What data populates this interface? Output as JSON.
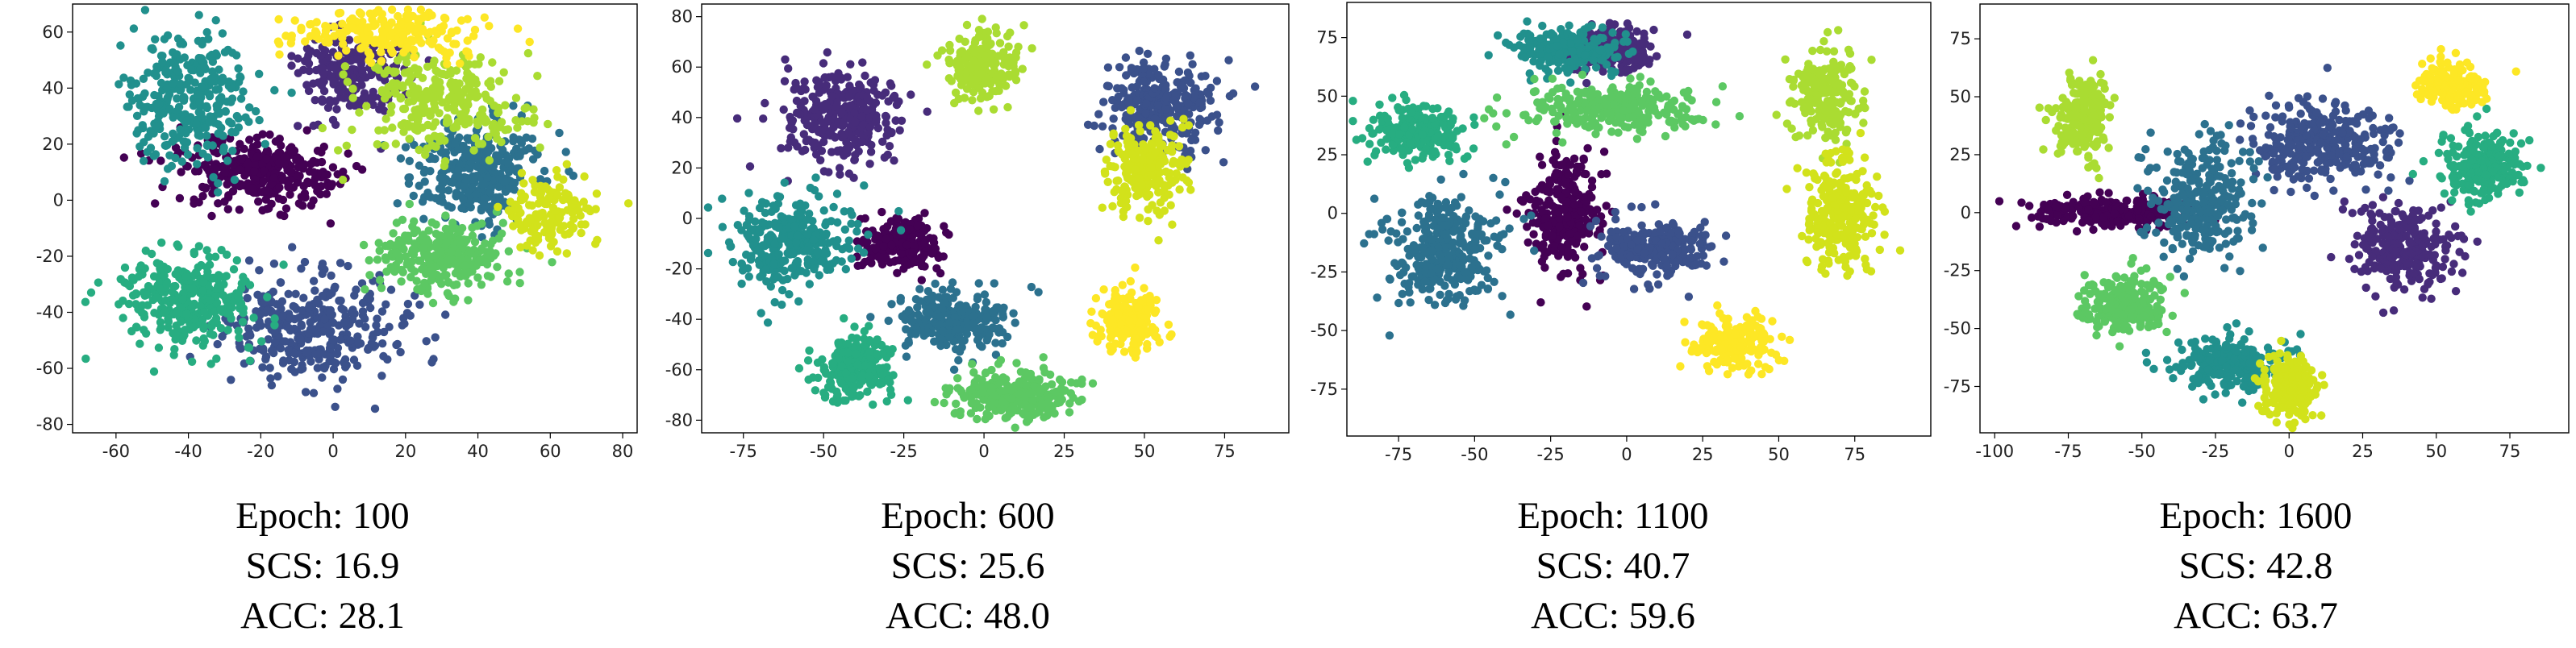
{
  "colors": {
    "palette": [
      "#440154",
      "#472c7a",
      "#3b518b",
      "#2c718e",
      "#21908d",
      "#27ad81",
      "#5cc863",
      "#aadc32",
      "#d2e21b",
      "#fde725"
    ],
    "axis": "#000000"
  },
  "chart_data": [
    {
      "type": "scatter",
      "caption": [
        "Epoch: 100",
        "SCS: 16.9",
        "ACC: 28.1"
      ],
      "xlim": [
        -72,
        84
      ],
      "ylim": [
        -83,
        70
      ],
      "xticks": [
        -60,
        -40,
        -20,
        0,
        20,
        40,
        60,
        80
      ],
      "yticks": [
        -80,
        -60,
        -40,
        -20,
        0,
        20,
        40,
        60
      ],
      "series": [
        {
          "color": "#440154",
          "center": [
            -20,
            10
          ],
          "spread": [
            18,
            10
          ],
          "n": 340
        },
        {
          "color": "#472c7a",
          "center": [
            5,
            45
          ],
          "spread": [
            12,
            12
          ],
          "n": 220
        },
        {
          "color": "#3b518b",
          "center": [
            -5,
            -45
          ],
          "spread": [
            20,
            15
          ],
          "n": 340
        },
        {
          "color": "#2c718e",
          "center": [
            40,
            10
          ],
          "spread": [
            15,
            15
          ],
          "n": 320
        },
        {
          "color": "#21908d",
          "center": [
            -40,
            35
          ],
          "spread": [
            15,
            20
          ],
          "n": 320
        },
        {
          "color": "#27ad81",
          "center": [
            -40,
            -35
          ],
          "spread": [
            15,
            15
          ],
          "n": 320
        },
        {
          "color": "#5cc863",
          "center": [
            30,
            -20
          ],
          "spread": [
            15,
            10
          ],
          "n": 280
        },
        {
          "color": "#aadc32",
          "center": [
            30,
            35
          ],
          "spread": [
            20,
            15
          ],
          "n": 280
        },
        {
          "color": "#d2e21b",
          "center": [
            60,
            -5
          ],
          "spread": [
            10,
            10
          ],
          "n": 160
        },
        {
          "color": "#fde725",
          "center": [
            15,
            60
          ],
          "spread": [
            20,
            7
          ],
          "n": 220
        }
      ]
    },
    {
      "type": "scatter",
      "caption": [
        "Epoch: 600",
        "SCS: 25.6",
        "ACC: 48.0"
      ],
      "xlim": [
        -88,
        95
      ],
      "ylim": [
        -85,
        85
      ],
      "xticks": [
        -75,
        -50,
        -25,
        0,
        25,
        50,
        75
      ],
      "yticks": [
        -80,
        -60,
        -40,
        -20,
        0,
        20,
        40,
        60,
        80
      ],
      "series": [
        {
          "color": "#440154",
          "center": [
            -25,
            -10
          ],
          "spread": [
            10,
            10
          ],
          "n": 220
        },
        {
          "color": "#472c7a",
          "center": [
            -45,
            40
          ],
          "spread": [
            15,
            15
          ],
          "n": 320
        },
        {
          "color": "#3b518b",
          "center": [
            55,
            45
          ],
          "spread": [
            15,
            15
          ],
          "n": 300
        },
        {
          "color": "#2c718e",
          "center": [
            -10,
            -40
          ],
          "spread": [
            15,
            10
          ],
          "n": 260
        },
        {
          "color": "#21908d",
          "center": [
            -60,
            -10
          ],
          "spread": [
            15,
            15
          ],
          "n": 300
        },
        {
          "color": "#27ad81",
          "center": [
            -40,
            -60
          ],
          "spread": [
            10,
            10
          ],
          "n": 220
        },
        {
          "color": "#5cc863",
          "center": [
            10,
            -70
          ],
          "spread": [
            15,
            8
          ],
          "n": 260
        },
        {
          "color": "#aadc32",
          "center": [
            0,
            60
          ],
          "spread": [
            10,
            12
          ],
          "n": 200
        },
        {
          "color": "#d2e21b",
          "center": [
            50,
            20
          ],
          "spread": [
            10,
            15
          ],
          "n": 220
        },
        {
          "color": "#fde725",
          "center": [
            45,
            -40
          ],
          "spread": [
            8,
            10
          ],
          "n": 200
        }
      ]
    },
    {
      "type": "scatter",
      "caption": [
        "Epoch: 1100",
        "SCS: 40.7",
        "ACC: 59.6"
      ],
      "xlim": [
        -92,
        100
      ],
      "ylim": [
        -95,
        90
      ],
      "xticks": [
        -75,
        -50,
        -25,
        0,
        25,
        50,
        75
      ],
      "yticks": [
        -75,
        -50,
        -25,
        0,
        25,
        50,
        75
      ],
      "series": [
        {
          "color": "#440154",
          "center": [
            -20,
            0
          ],
          "spread": [
            10,
            20
          ],
          "n": 280
        },
        {
          "color": "#472c7a",
          "center": [
            -5,
            70
          ],
          "spread": [
            12,
            8
          ],
          "n": 220
        },
        {
          "color": "#3b518b",
          "center": [
            10,
            -15
          ],
          "spread": [
            15,
            10
          ],
          "n": 260
        },
        {
          "color": "#2c718e",
          "center": [
            -60,
            -15
          ],
          "spread": [
            15,
            20
          ],
          "n": 320
        },
        {
          "color": "#21908d",
          "center": [
            -20,
            70
          ],
          "spread": [
            15,
            8
          ],
          "n": 220
        },
        {
          "color": "#27ad81",
          "center": [
            -70,
            35
          ],
          "spread": [
            12,
            10
          ],
          "n": 240
        },
        {
          "color": "#5cc863",
          "center": [
            -5,
            45
          ],
          "spread": [
            25,
            8
          ],
          "n": 280
        },
        {
          "color": "#aadc32",
          "center": [
            65,
            50
          ],
          "spread": [
            10,
            15
          ],
          "n": 220
        },
        {
          "color": "#d2e21b",
          "center": [
            70,
            0
          ],
          "spread": [
            10,
            20
          ],
          "n": 260
        },
        {
          "color": "#fde725",
          "center": [
            35,
            -55
          ],
          "spread": [
            12,
            10
          ],
          "n": 200
        }
      ]
    },
    {
      "type": "scatter",
      "caption": [
        "Epoch: 1600",
        "SCS: 42.8",
        "ACC: 63.7"
      ],
      "xlim": [
        -105,
        95
      ],
      "ylim": [
        -95,
        90
      ],
      "xticks": [
        -100,
        -75,
        -50,
        -25,
        0,
        25,
        50,
        75
      ],
      "yticks": [
        -75,
        -50,
        -25,
        0,
        25,
        50,
        75
      ],
      "series": [
        {
          "color": "#440154",
          "center": [
            -60,
            0
          ],
          "spread": [
            25,
            6
          ],
          "n": 240
        },
        {
          "color": "#472c7a",
          "center": [
            40,
            -15
          ],
          "spread": [
            15,
            15
          ],
          "n": 280
        },
        {
          "color": "#3b518b",
          "center": [
            10,
            30
          ],
          "spread": [
            20,
            15
          ],
          "n": 320
        },
        {
          "color": "#2c718e",
          "center": [
            -30,
            5
          ],
          "spread": [
            15,
            20
          ],
          "n": 300
        },
        {
          "color": "#21908d",
          "center": [
            -20,
            -65
          ],
          "spread": [
            15,
            10
          ],
          "n": 240
        },
        {
          "color": "#27ad81",
          "center": [
            65,
            20
          ],
          "spread": [
            12,
            12
          ],
          "n": 240
        },
        {
          "color": "#5cc863",
          "center": [
            -55,
            -40
          ],
          "spread": [
            12,
            10
          ],
          "n": 240
        },
        {
          "color": "#aadc32",
          "center": [
            -70,
            40
          ],
          "spread": [
            8,
            15
          ],
          "n": 200
        },
        {
          "color": "#d2e21b",
          "center": [
            0,
            -75
          ],
          "spread": [
            8,
            12
          ],
          "n": 200
        },
        {
          "color": "#fde725",
          "center": [
            55,
            55
          ],
          "spread": [
            10,
            8
          ],
          "n": 180
        }
      ]
    }
  ]
}
